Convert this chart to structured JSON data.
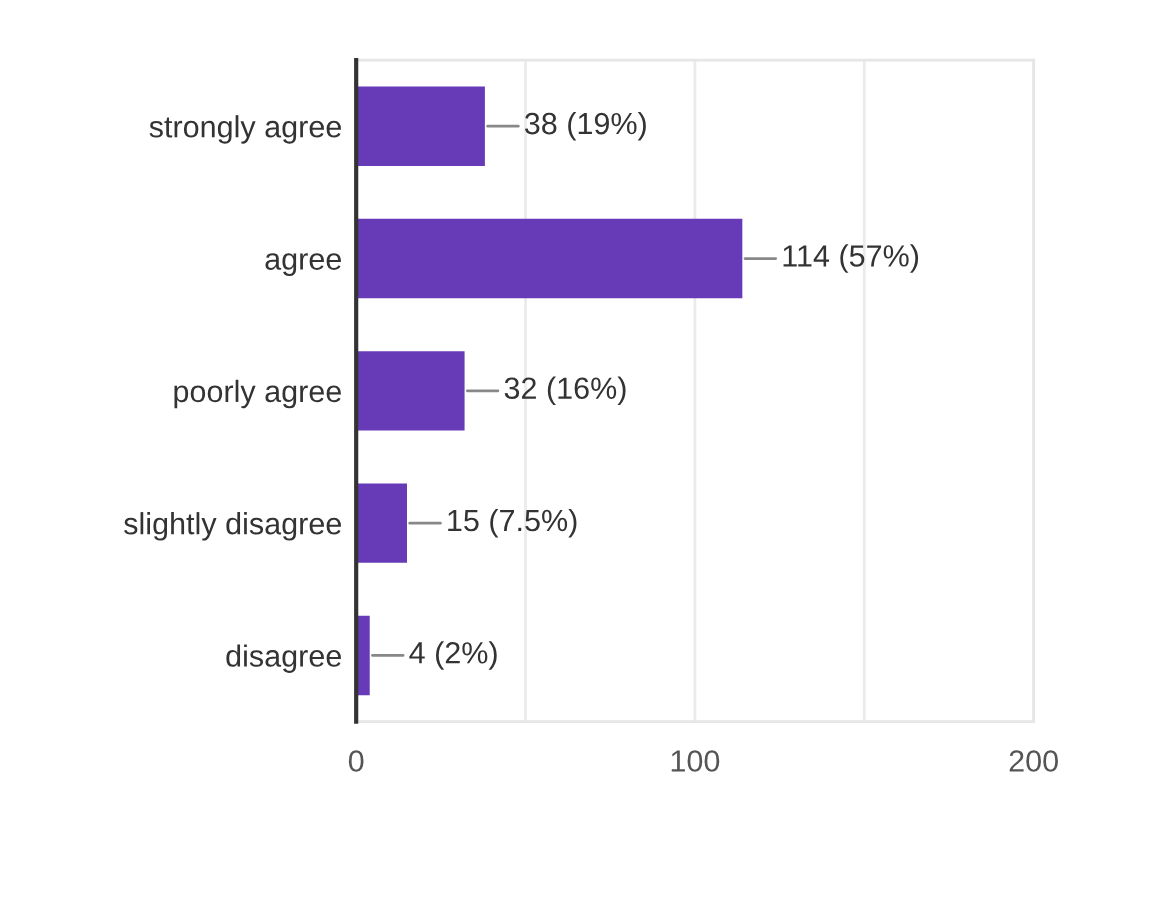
{
  "chart_data": {
    "type": "bar",
    "orientation": "horizontal",
    "categories": [
      "strongly agree",
      "agree",
      "poorly agree",
      "slightly disagree",
      "disagree"
    ],
    "values": [
      38,
      114,
      32,
      15,
      4
    ],
    "color": "#673ab7",
    "value_labels": [
      "38 (19%)",
      "114 (57%)",
      "32 (16%)",
      "15 (7.5%)",
      "4 (2%)"
    ],
    "xlim": [
      0,
      200
    ],
    "xticks": [
      0,
      {
        "value": 50,
        "label": null
      },
      100,
      {
        "value": 150,
        "label": null
      },
      200
    ],
    "grid": "x"
  }
}
